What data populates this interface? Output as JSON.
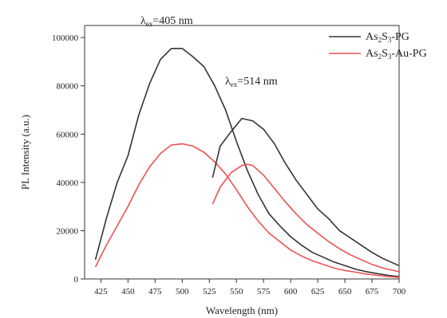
{
  "chart_data": {
    "type": "line",
    "xlabel": "Wavelength (nm)",
    "ylabel": "PL Intensity (a.u.)",
    "xlim": [
      410,
      700
    ],
    "ylim": [
      0,
      105000
    ],
    "x_ticks": [
      "425",
      "450",
      "475",
      "500",
      "525",
      "550",
      "575",
      "600",
      "625",
      "650",
      "675",
      "700"
    ],
    "y_ticks": [
      "0",
      "20000",
      "40000",
      "60000",
      "80000",
      "100000"
    ],
    "annotations": [
      {
        "main": "λ",
        "sub": "ex",
        "rest": "=405 nm"
      },
      {
        "main": "λ",
        "sub": "ex",
        "rest": "=514 nm"
      }
    ],
    "legend": [
      {
        "parts": [
          "As",
          "2",
          "S",
          "3",
          "-PG"
        ],
        "color": "#333333"
      },
      {
        "parts": [
          "As",
          "2",
          "S",
          "3",
          "-Au-PG"
        ],
        "color": "#f05050"
      }
    ],
    "legend_position": "top-right",
    "series": [
      {
        "excitation": "405 nm",
        "sample": "As2S3-PG",
        "color": "#333333",
        "x": [
          420,
          430,
          440,
          450,
          460,
          470,
          480,
          490,
          500,
          510,
          520,
          530,
          540,
          550,
          560,
          570,
          580,
          590,
          600,
          610,
          620,
          630,
          640,
          650,
          660,
          670,
          680,
          690,
          700
        ],
        "y": [
          8000,
          25000,
          40000,
          51000,
          68000,
          81000,
          91000,
          95500,
          95500,
          92000,
          88000,
          80000,
          70000,
          57000,
          45000,
          35000,
          27000,
          22000,
          17500,
          14000,
          11000,
          9000,
          7000,
          5500,
          4000,
          3000,
          2200,
          1500,
          1000
        ]
      },
      {
        "excitation": "405 nm",
        "sample": "As2S3-Au-PG",
        "color": "#f05050",
        "x": [
          420,
          430,
          440,
          450,
          460,
          470,
          480,
          490,
          500,
          510,
          520,
          530,
          540,
          550,
          560,
          570,
          580,
          590,
          600,
          610,
          620,
          630,
          640,
          650,
          660,
          670,
          680,
          690,
          700
        ],
        "y": [
          5000,
          14000,
          22000,
          30000,
          39000,
          46500,
          52000,
          55500,
          56000,
          55000,
          52500,
          48500,
          43500,
          37000,
          30000,
          24000,
          19000,
          15500,
          12000,
          9500,
          7500,
          6000,
          4500,
          3500,
          2800,
          2000,
          1500,
          1000,
          700
        ]
      },
      {
        "excitation": "514 nm",
        "sample": "As2S3-PG",
        "color": "#333333",
        "x": [
          528,
          535,
          545,
          555,
          565,
          575,
          585,
          595,
          605,
          615,
          625,
          635,
          645,
          655,
          665,
          675,
          685,
          695,
          700
        ],
        "y": [
          42000,
          55000,
          61000,
          66500,
          65500,
          62000,
          56000,
          48000,
          41000,
          35000,
          29000,
          25000,
          20000,
          17000,
          14000,
          11000,
          8500,
          6500,
          5500
        ]
      },
      {
        "excitation": "514 nm",
        "sample": "As2S3-Au-PG",
        "color": "#f05050",
        "x": [
          528,
          535,
          545,
          555,
          560,
          565,
          575,
          585,
          595,
          605,
          615,
          625,
          635,
          645,
          655,
          665,
          675,
          685,
          695,
          700
        ],
        "y": [
          31000,
          38000,
          44000,
          47000,
          47500,
          47000,
          43000,
          37500,
          32000,
          27000,
          22500,
          19000,
          15500,
          12500,
          10000,
          8000,
          6000,
          4500,
          3500,
          3000
        ]
      }
    ]
  }
}
